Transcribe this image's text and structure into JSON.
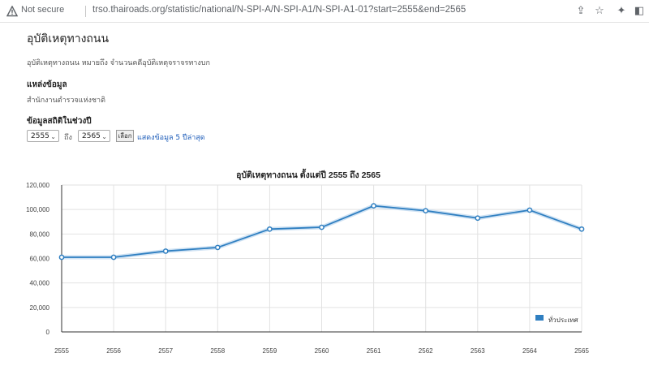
{
  "browser": {
    "security_label": "Not secure",
    "url": "trso.thairoads.org/statistic/national/N-SPI-A/N-SPI-A1/N-SPI-A1-01?start=2555&end=2565",
    "icons": [
      "warning-icon",
      "share-icon",
      "bookmark-star-icon",
      "extensions-icon",
      "side-panel-icon"
    ]
  },
  "page": {
    "title": "อุบัติเหตุทางถนน",
    "description": "อุบัติเหตุทางถนน หมายถึง จำนวนคดีอุบัติเหตุจราจรทางบก",
    "source_heading": "แหล่งข้อมูล",
    "source_value": "สำนักงานตำรวจแห่งชาติ",
    "range_heading": "ข้อมูลสถิติในช่วงปี",
    "start_year": "2555",
    "to_label": "ถึง",
    "end_year": "2565",
    "select_button": "เลือก",
    "latest_link": "แสดงข้อมูล 5 ปีล่าสุด"
  },
  "chart_data": {
    "type": "line",
    "title": "อุบัติเหตุทางถนน ตั้งแต่ปี 2555 ถึง 2565",
    "categories": [
      "2555",
      "2556",
      "2557",
      "2558",
      "2559",
      "2560",
      "2561",
      "2562",
      "2563",
      "2564",
      "2565"
    ],
    "series": [
      {
        "name": "ทั่วประเทศ",
        "values": [
          61000,
          61000,
          66000,
          69000,
          84000,
          85500,
          103000,
          99000,
          93000,
          99500,
          84000
        ]
      }
    ],
    "ylim": [
      0,
      120000
    ],
    "yticks": [
      "0",
      "20,000",
      "40,000",
      "60,000",
      "80,000",
      "100,000",
      "120,000"
    ],
    "ytick_values": [
      0,
      20000,
      40000,
      60000,
      80000,
      100000,
      120000
    ],
    "grid": true,
    "legend": "bottom-right",
    "color": "#2f7fc1"
  }
}
